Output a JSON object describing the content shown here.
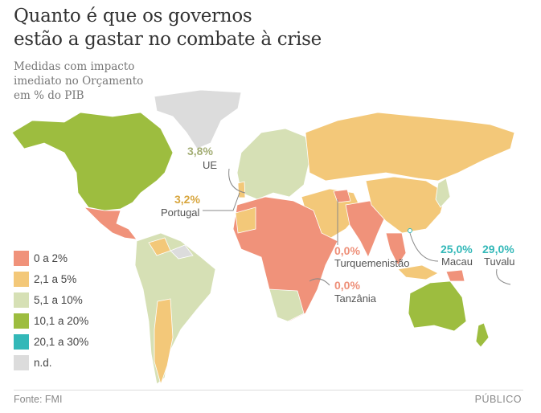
{
  "title_lines": [
    "Quanto é que os governos",
    "estão a gastar no combate à crise"
  ],
  "subtitle_lines": [
    "Medidas com impacto",
    "imediato no Orçamento",
    "em % do PIB"
  ],
  "colors": {
    "0-2": "#f0927a",
    "2.1-5": "#f3c879",
    "5.1-10": "#d6e0b5",
    "10.1-20": "#9dbd3f",
    "20.1-30": "#33b8b8",
    "nd": "#dcdcdc"
  },
  "legend": [
    {
      "label": "0 a 2%",
      "color": "#f0927a"
    },
    {
      "label": "2,1 a 5%",
      "color": "#f3c879"
    },
    {
      "label": "5,1 a 10%",
      "color": "#d6e0b5"
    },
    {
      "label": "10,1 a 20%",
      "color": "#9dbd3f"
    },
    {
      "label": "20,1 a 30%",
      "color": "#33b8b8"
    },
    {
      "label": "n.d.",
      "color": "#dcdcdc"
    }
  ],
  "annotations": [
    {
      "value": "3,8%",
      "name": "UE",
      "color": "#a3ad74"
    },
    {
      "value": "3,2%",
      "name": "Portugal",
      "color": "#d8a63e"
    },
    {
      "value": "0,0%",
      "name": "Turquemenistão",
      "color": "#ee8f78"
    },
    {
      "value": "0,0%",
      "name": "Tanzânia",
      "color": "#ee8f78"
    },
    {
      "value": "25,0%",
      "name": "Macau",
      "color": "#33b8b8"
    },
    {
      "value": "29,0%",
      "name": "Tuvalu",
      "color": "#33b8b8"
    }
  ],
  "footer": {
    "source": "Fonte: FMI",
    "brand": "PÚBLICO"
  }
}
